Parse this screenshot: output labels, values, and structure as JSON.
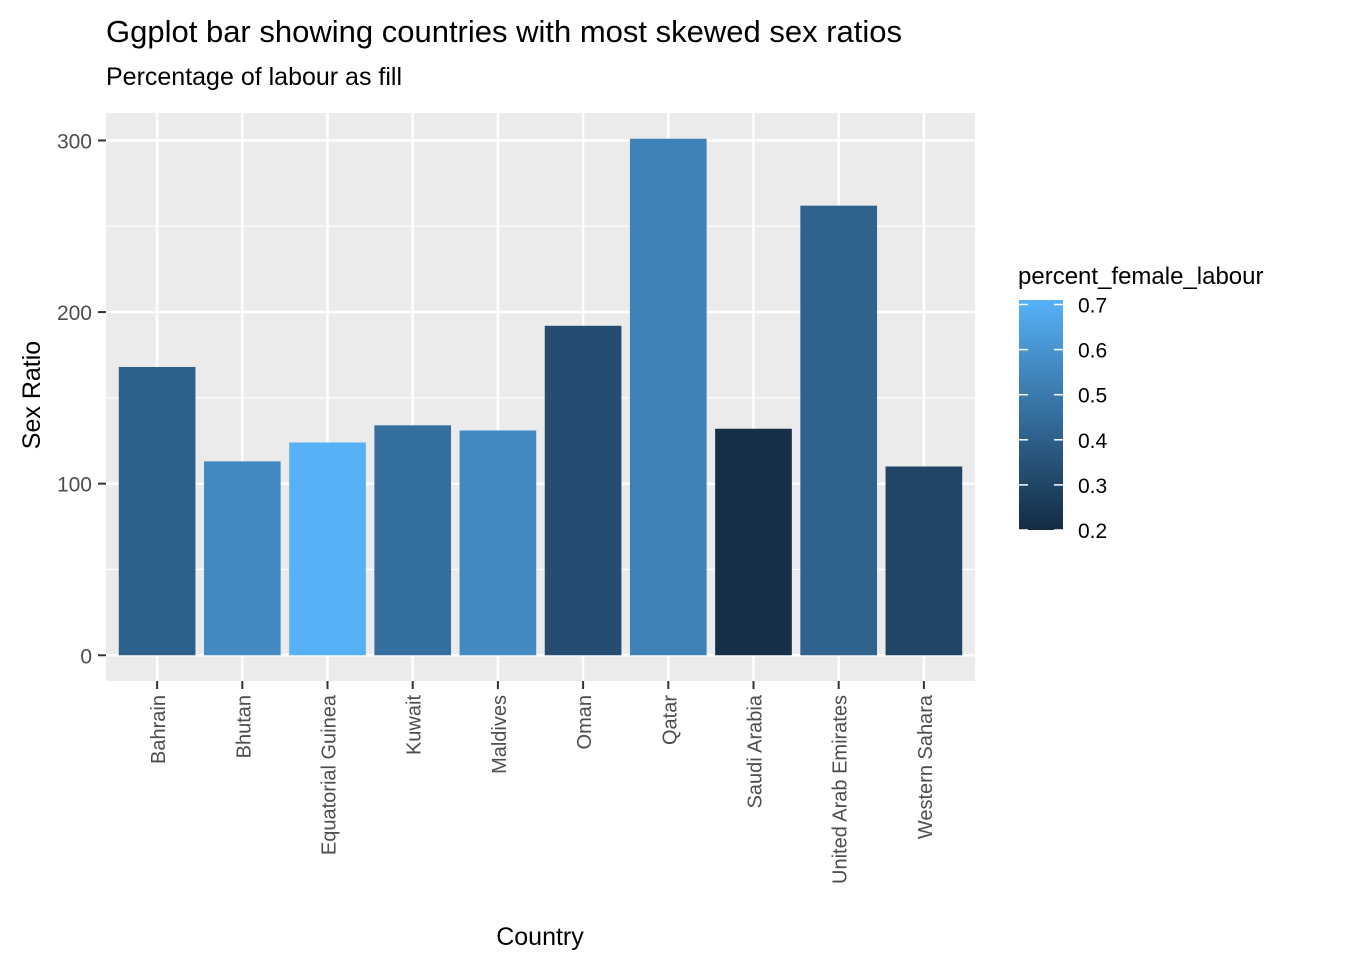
{
  "chart_data": {
    "type": "bar",
    "title": "Ggplot bar showing countries with most skewed sex ratios",
    "subtitle": "Percentage of labour as fill",
    "xlabel": "Country",
    "ylabel": "Sex Ratio",
    "categories": [
      "Bahrain",
      "Bhutan",
      "Equatorial Guinea",
      "Kuwait",
      "Maldives",
      "Oman",
      "Qatar",
      "Saudi Arabia",
      "United Arab Emirates",
      "Western Sahara"
    ],
    "values": [
      168,
      113,
      124,
      134,
      131,
      192,
      301,
      132,
      262,
      110
    ],
    "fill_values": [
      0.4,
      0.56,
      0.72,
      0.46,
      0.56,
      0.33,
      0.53,
      0.22,
      0.41,
      0.3
    ],
    "ylim": [
      -15,
      316
    ],
    "yticks": [
      0,
      100,
      200,
      300
    ],
    "grid": true,
    "legend": {
      "title": "percent_female_labour",
      "placement": "right",
      "ticks": [
        "0.7",
        "0.6",
        "0.5",
        "0.4",
        "0.3",
        "0.2"
      ],
      "tick_values": [
        0.7,
        0.6,
        0.5,
        0.4,
        0.3,
        0.2
      ],
      "range": [
        0.2,
        0.71
      ],
      "low_color": "#132B43",
      "high_color": "#56B1F7"
    },
    "colors": {
      "panel_background": "#EBEBEB",
      "grid": "#FFFFFF",
      "axis_text": "#4D4D4D",
      "tick": "#333333"
    }
  }
}
